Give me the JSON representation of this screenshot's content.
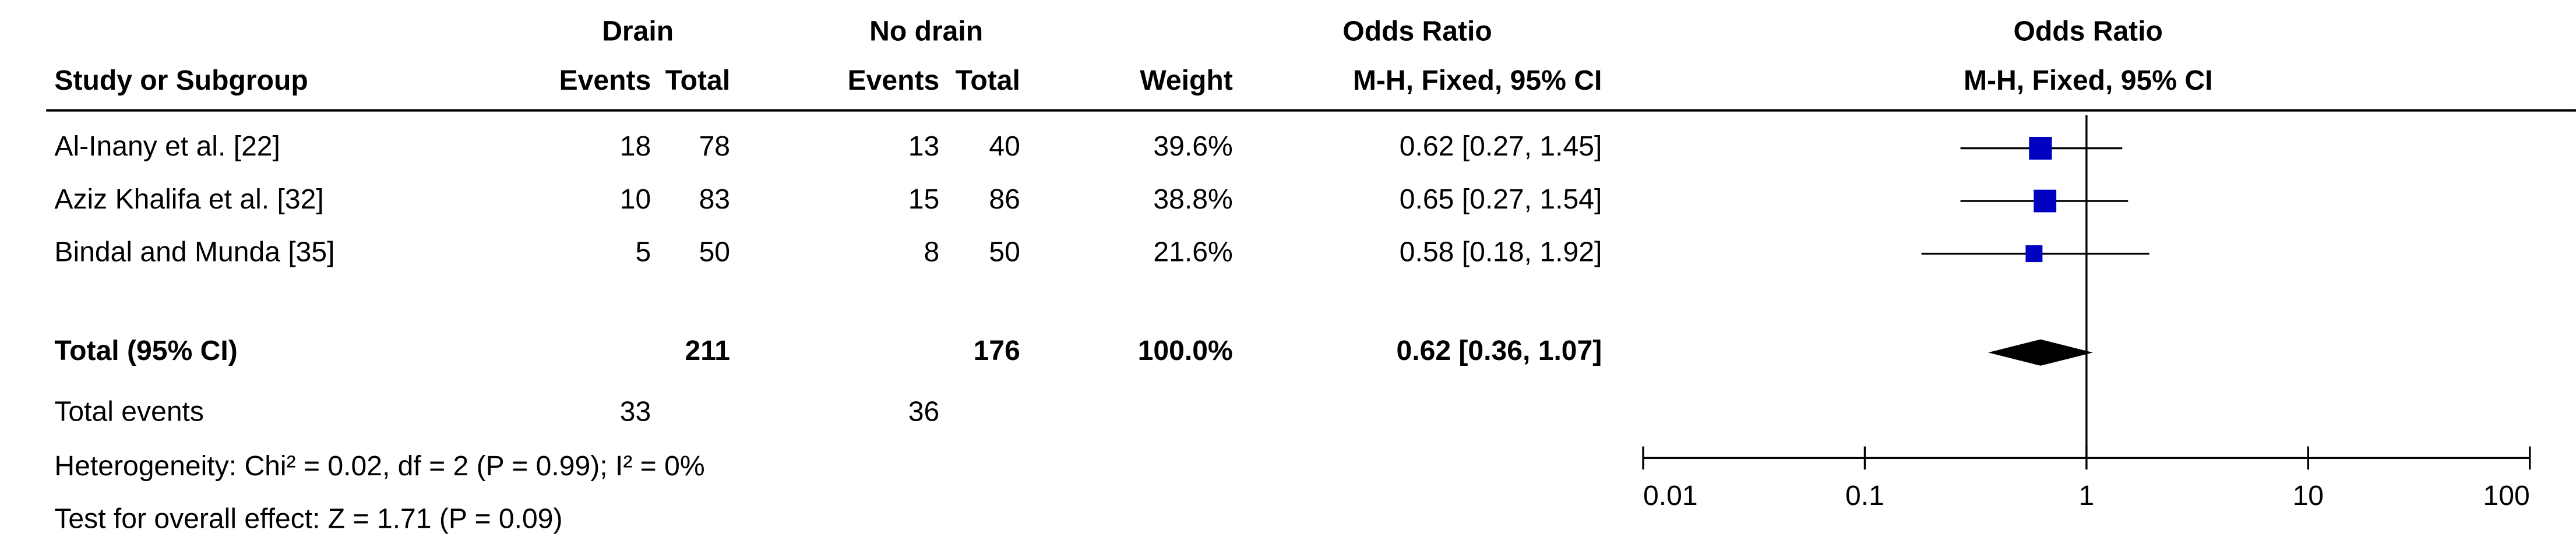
{
  "chart_data": {
    "type": "forest",
    "group_headers": {
      "drain": "Drain",
      "no_drain": "No drain",
      "odds_ratio": "Odds Ratio",
      "plot": "Odds Ratio"
    },
    "columns": [
      "Study or Subgroup",
      "Events",
      "Total",
      "Events",
      "Total",
      "Weight",
      "M-H, Fixed, 95% CI"
    ],
    "plot_subheader": "M-H, Fixed, 95% CI",
    "studies": [
      {
        "name": "Al-Inany et al. [22]",
        "drain_events": 18,
        "drain_total": 78,
        "nodrain_events": 13,
        "nodrain_total": 40,
        "weight": 39.6,
        "weight_label": "39.6%",
        "or": 0.62,
        "lower": 0.27,
        "upper": 1.45,
        "ci_label": "0.62 [0.27, 1.45]"
      },
      {
        "name": "Aziz Khalifa et al. [32]",
        "drain_events": 10,
        "drain_total": 83,
        "nodrain_events": 15,
        "nodrain_total": 86,
        "weight": 38.8,
        "weight_label": "38.8%",
        "or": 0.65,
        "lower": 0.27,
        "upper": 1.54,
        "ci_label": "0.65 [0.27, 1.54]"
      },
      {
        "name": "Bindal and Munda [35]",
        "drain_events": 5,
        "drain_total": 50,
        "nodrain_events": 8,
        "nodrain_total": 50,
        "weight": 21.6,
        "weight_label": "21.6%",
        "or": 0.58,
        "lower": 0.18,
        "upper": 1.92,
        "ci_label": "0.58 [0.18, 1.92]"
      }
    ],
    "total": {
      "name": "Total (95% CI)",
      "drain_total": 211,
      "nodrain_total": 176,
      "weight": 100.0,
      "weight_label": "100.0%",
      "or": 0.62,
      "lower": 0.36,
      "upper": 1.07,
      "ci_label": "0.62 [0.36, 1.07]"
    },
    "events": {
      "name": "Total events",
      "drain": 33,
      "nodrain": 36
    },
    "heterogeneity": "Heterogeneity: Chi² = 0.02, df = 2 (P = 0.99); I² = 0%",
    "overall_effect": "Test for overall effect: Z = 1.71 (P = 0.09)",
    "xscale": "log",
    "xlim": [
      0.01,
      100
    ],
    "xticks": [
      0.01,
      0.1,
      1,
      10,
      100
    ],
    "color": "#0000c0"
  }
}
